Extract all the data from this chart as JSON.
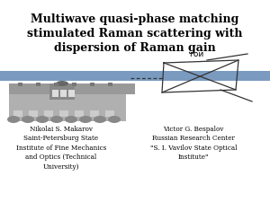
{
  "title_line1": "Multiwave quasi-phase matching",
  "title_line2": "stimulated Raman scattering with",
  "title_line3": "dispersion of Raman gain",
  "title_fontsize": 9.0,
  "title_fontweight": "bold",
  "banner_color": "#7a9bbf",
  "background_color": "#ffffff",
  "author_left": "Nikolai S. Makarov\nSaint-Petersburg State\nInstitute of Fine Mechanics\nand Optics (Technical\nUniversity)",
  "author_right": "Victor G. Bespalov\nRussian Research Center\n\"S. I. Vavilov State Optical\nInstitute\"",
  "author_fontsize": 5.2,
  "goi_label": "гои",
  "goi_fontsize": 6.5
}
